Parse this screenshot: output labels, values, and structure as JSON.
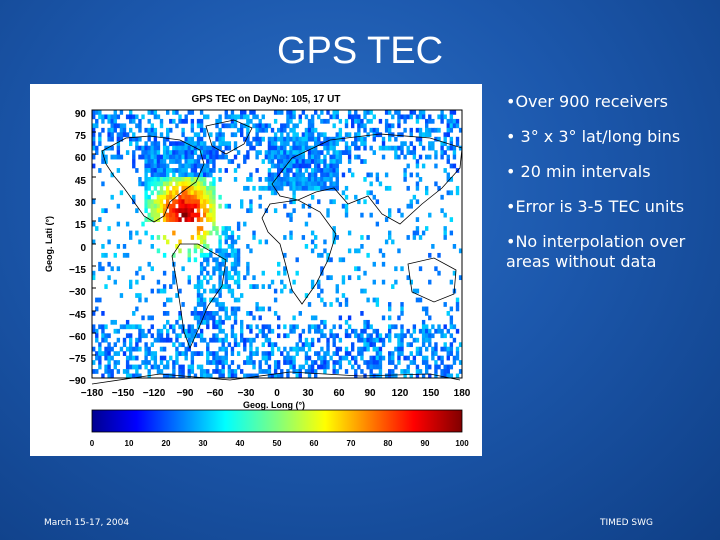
{
  "slide": {
    "title": "GPS TEC",
    "bullets": [
      "•Over 900 receivers",
      "• 3° x 3° lat/long bins",
      "• 20 min intervals",
      "•Error is 3-5 TEC units",
      "•No interpolation over areas without data"
    ],
    "footer_left": "March 15-17, 2004",
    "footer_right": "TIMED SWG"
  },
  "figure": {
    "title": "GPS TEC on DayNo: 105, 17 UT",
    "ylabel": "Geog. Lati (°)",
    "xlabel": "Geog. Long (°)",
    "y_ticks": [
      "90",
      "75",
      "60",
      "45",
      "30",
      "15",
      "0",
      "−15",
      "−30",
      "−45",
      "−60",
      "−75",
      "−90"
    ],
    "x_ticks": [
      "−180",
      "−150",
      "−120",
      "−90",
      "−60",
      "−30",
      "0",
      "30",
      "60",
      "90",
      "120",
      "150",
      "180"
    ],
    "colorbar_ticks": [
      "0",
      "10",
      "20",
      "30",
      "40",
      "50",
      "60",
      "70",
      "80",
      "90",
      "100"
    ]
  }
}
